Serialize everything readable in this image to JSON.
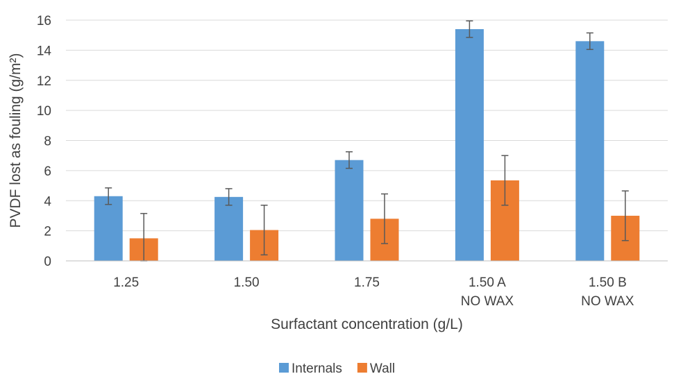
{
  "chart_data": {
    "type": "bar",
    "title": "",
    "xlabel": "Surfactant concentration (g/L)",
    "ylabel": "PVDF lost as fouling (g/m²)",
    "ylim": [
      0,
      16
    ],
    "yticks": [
      0,
      2,
      4,
      6,
      8,
      10,
      12,
      14,
      16
    ],
    "grid": true,
    "legend_position": "bottom",
    "categories": [
      [
        "1.25"
      ],
      [
        "1.50"
      ],
      [
        "1.75"
      ],
      [
        "1.50 A",
        "NO WAX"
      ],
      [
        "1.50 B",
        "NO WAX"
      ]
    ],
    "series": [
      {
        "name": "Internals",
        "color": "#5B9BD5",
        "values": [
          4.3,
          4.25,
          6.7,
          15.4,
          14.6
        ],
        "error": [
          0.55,
          0.55,
          0.55,
          0.55,
          0.55
        ]
      },
      {
        "name": "Wall",
        "color": "#ED7D31",
        "values": [
          1.5,
          2.05,
          2.8,
          5.35,
          3.0
        ],
        "error": [
          1.65,
          1.65,
          1.65,
          1.65,
          1.65
        ]
      }
    ]
  }
}
